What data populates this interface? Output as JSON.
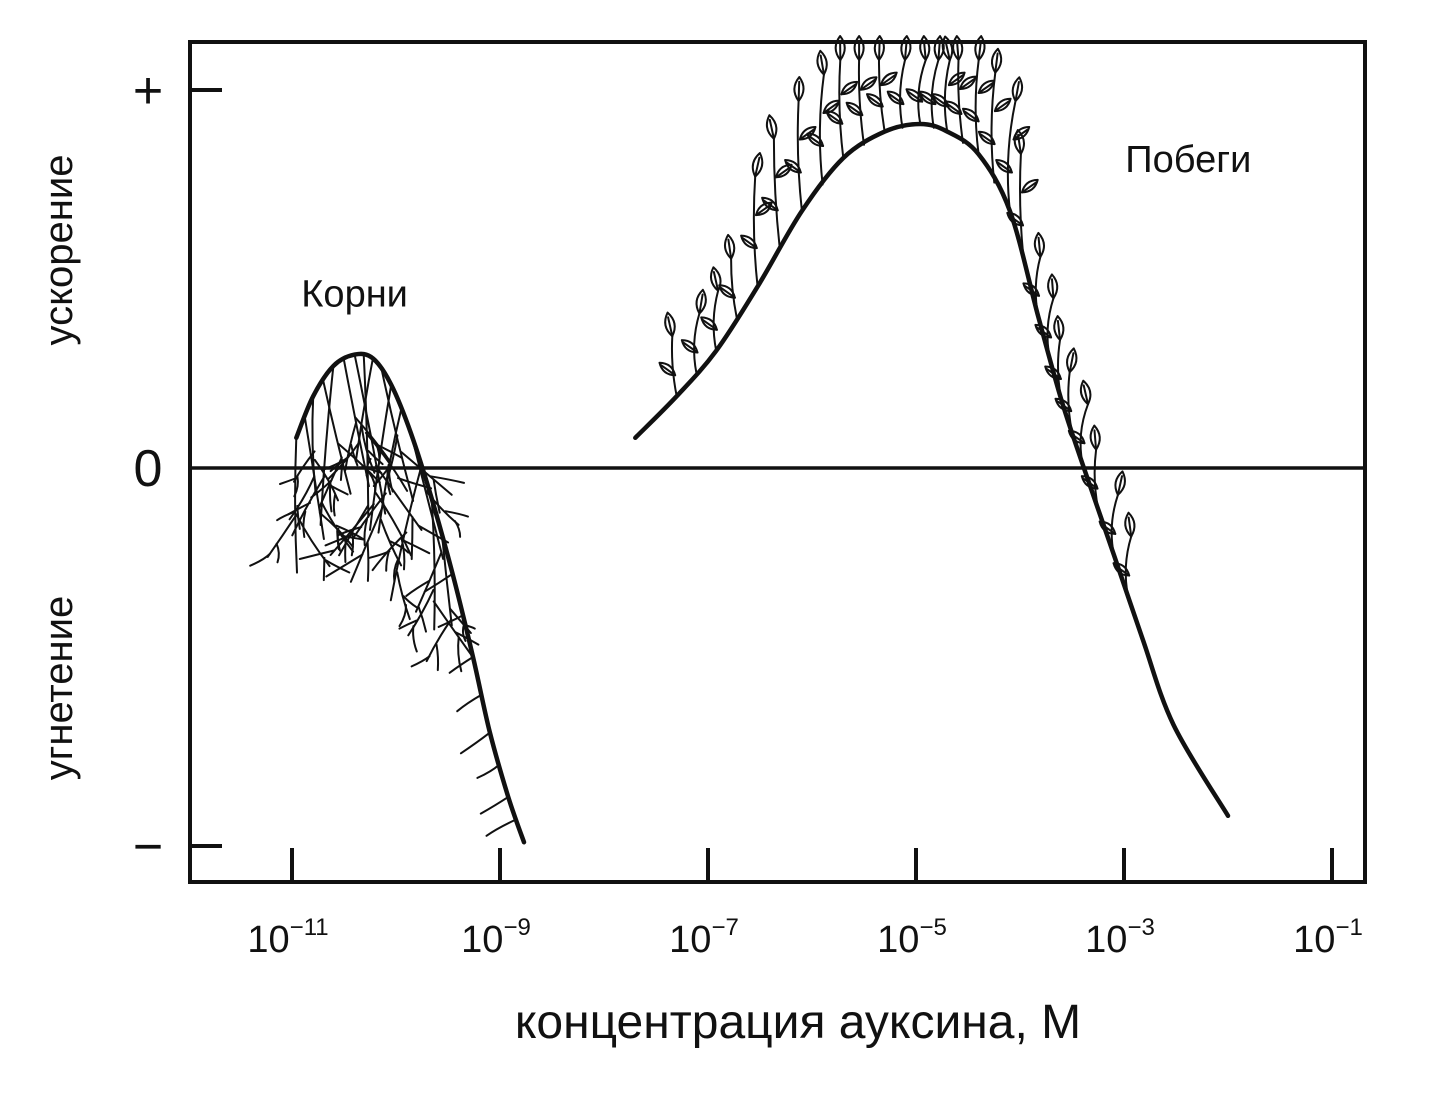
{
  "chart_data": {
    "type": "line",
    "title": "",
    "xlabel": "концентрация ауксина, М",
    "x_scale": "log",
    "x_ticks": [
      {
        "value": 1e-11,
        "base": "10",
        "exp": "−11"
      },
      {
        "value": 1e-09,
        "base": "10",
        "exp": "−9"
      },
      {
        "value": 1e-07,
        "base": "10",
        "exp": "−7"
      },
      {
        "value": 1e-05,
        "base": "10",
        "exp": "−5"
      },
      {
        "value": 0.001,
        "base": "10",
        "exp": "−3"
      },
      {
        "value": 0.1,
        "base": "10",
        "exp": "−1"
      }
    ],
    "xlim": [
      1e-12,
      0.4
    ],
    "ylim": [
      -1.1,
      1.1
    ],
    "y_ticks": [
      {
        "value": 1,
        "label": "+"
      },
      {
        "value": 0,
        "label": "0"
      },
      {
        "value": -1,
        "label": "−"
      }
    ],
    "y_region_labels": {
      "upper": "ускорение",
      "lower": "угнетение"
    },
    "series": [
      {
        "name": "Корни",
        "x": [
          1.1e-11,
          1.6e-11,
          2.5e-11,
          4e-11,
          6e-11,
          9e-11,
          1.4e-10,
          2.2e-10,
          3.5e-10,
          5.5e-10,
          8e-10,
          1.2e-09,
          1.7e-09
        ],
        "y": [
          0.08,
          0.19,
          0.27,
          0.3,
          0.29,
          0.22,
          0.09,
          -0.08,
          -0.28,
          -0.5,
          -0.7,
          -0.87,
          -0.99
        ]
      },
      {
        "name": "Побеги",
        "x": [
          2e-08,
          5e-08,
          1.2e-07,
          3e-07,
          8e-07,
          2e-06,
          5e-06,
          1.1e-05,
          2e-05,
          4e-05,
          8e-05,
          0.00015,
          0.00025,
          0.0004,
          0.0008,
          0.0015,
          0.003,
          0.01
        ],
        "y": [
          0.08,
          0.19,
          0.31,
          0.48,
          0.68,
          0.82,
          0.89,
          0.91,
          0.89,
          0.83,
          0.68,
          0.4,
          0.18,
          0.01,
          -0.23,
          -0.45,
          -0.68,
          -0.92
        ]
      }
    ],
    "grid": false,
    "legend": "none"
  }
}
